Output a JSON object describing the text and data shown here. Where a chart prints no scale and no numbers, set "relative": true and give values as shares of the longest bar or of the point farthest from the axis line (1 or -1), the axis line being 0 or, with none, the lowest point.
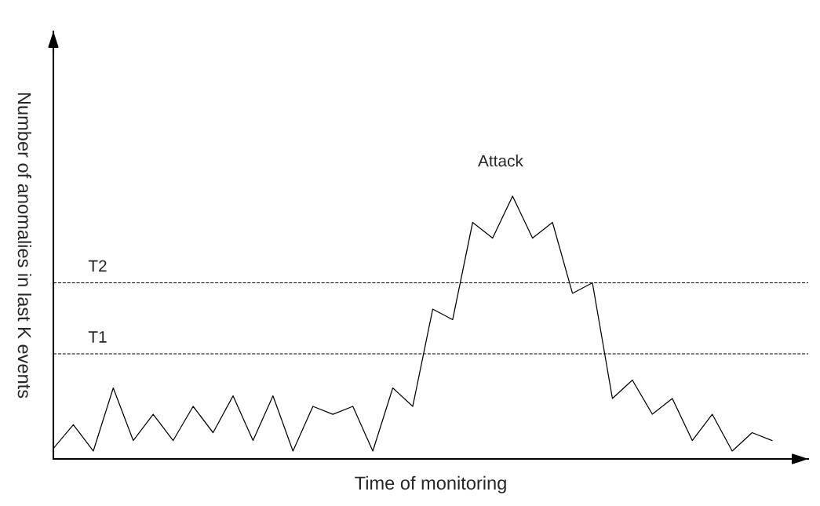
{
  "chart_data": {
    "type": "line",
    "relative": true,
    "xlabel": "Time of monitoring",
    "ylabel": "Number of anomalies in last K events",
    "categories": [
      null,
      null,
      null,
      null,
      null,
      null,
      null,
      null,
      null,
      null,
      null,
      null,
      null,
      null,
      null,
      null,
      null,
      null,
      null,
      null,
      null,
      null,
      null,
      null,
      null,
      null,
      null,
      null,
      null,
      null,
      null,
      null,
      null,
      null,
      null,
      null,
      null
    ],
    "series": [
      {
        "color": "#000000",
        "values": [
          0.04,
          0.13,
          0.03,
          0.27,
          0.07,
          0.17,
          0.07,
          0.2,
          0.1,
          0.24,
          0.07,
          0.24,
          0.03,
          0.2,
          0.17,
          0.2,
          0.03,
          0.27,
          0.2,
          0.57,
          0.53,
          0.9,
          0.84,
          1,
          0.84,
          0.9,
          0.63,
          0.67,
          0.23,
          0.3,
          0.17,
          0.23,
          0.07,
          0.17,
          0.03,
          0.1,
          0.07
        ]
      }
    ],
    "ref_lines": [
      {
        "axis": "y",
        "value": 0.4,
        "label": "T1",
        "color": "#000000",
        "line_style": "dashed"
      },
      {
        "axis": "y",
        "value": 0.67,
        "label": "T2",
        "color": "#000000",
        "line_style": "dashed"
      }
    ],
    "annotations": [
      "Attack"
    ],
    "tick_labels": false,
    "legend": false,
    "marker": "none",
    "line_style": "solid"
  }
}
